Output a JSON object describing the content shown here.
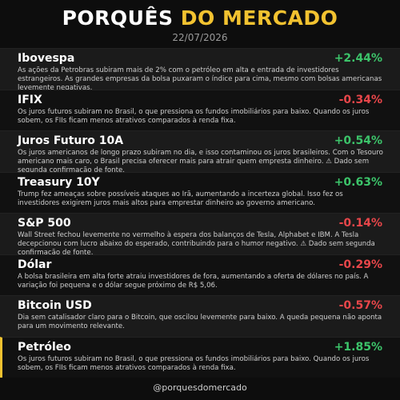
{
  "header": {
    "title_white": "PORQUÊS",
    "title_yellow": "DO MERCADO",
    "date": "22/07/2026"
  },
  "items": [
    {
      "name": "Ibovespa",
      "change": "+2.44%",
      "text": "As ações da Petrobras subiram mais de 2% com o petróleo em alta e entrada de investidores estrangeiros. As grandes empresas da bolsa puxaram o índice para cima, mesmo com bolsas americanas levemente negativas."
    },
    {
      "name": "IFIX",
      "change": "-0.34%",
      "text": "Os juros futuros subiram no Brasil, o que pressiona os fundos imobiliários para baixo. Quando os juros sobem, os FIIs ficam menos atrativos comparados à renda fixa."
    },
    {
      "name": "Juros Futuro 10A",
      "change": "+0.54%",
      "text": "Os juros americanos de longo prazo subiram no dia, e isso contaminou os juros brasileiros. Com o Tesouro americano mais caro, o Brasil precisa oferecer mais para atrair quem empresta dinheiro. ⚠ Dado sem segunda confirmação de fonte."
    },
    {
      "name": "Treasury 10Y",
      "change": "+0.63%",
      "text": "Trump fez ameaças sobre possíveis ataques ao Irã, aumentando a incerteza global. Isso fez os investidores exigirem juros mais altos para emprestar dinheiro ao governo americano."
    },
    {
      "name": "S&P 500",
      "change": "-0.14%",
      "text": "Wall Street fechou levemente no vermelho à espera dos balanços de Tesla, Alphabet e IBM. A Tesla decepcionou com lucro abaixo do esperado, contribuindo para o humor negativo. ⚠ Dado sem segunda confirmação de fonte."
    },
    {
      "name": "Dólar",
      "change": "-0.29%",
      "text": "A bolsa brasileira em alta forte atraiu investidores de fora, aumentando a oferta de dólares no país. A variação foi pequena e o dólar segue próximo de R$ 5,06."
    },
    {
      "name": "Bitcoin USD",
      "change": "-0.57%",
      "text": "Dia sem catalisador claro para o Bitcoin, que oscilou levemente para baixo. A queda pequena não aponta para um movimento relevante."
    },
    {
      "name": "Petróleo",
      "change": "+1.85%",
      "text": "Os juros futuros subiram no Brasil, o que pressiona os fundos imobiliários para baixo. Quando os juros sobem, os FIIs ficam menos atrativos comparados à renda fixa."
    }
  ],
  "footer": {
    "handle": "@porquesdomercado"
  }
}
